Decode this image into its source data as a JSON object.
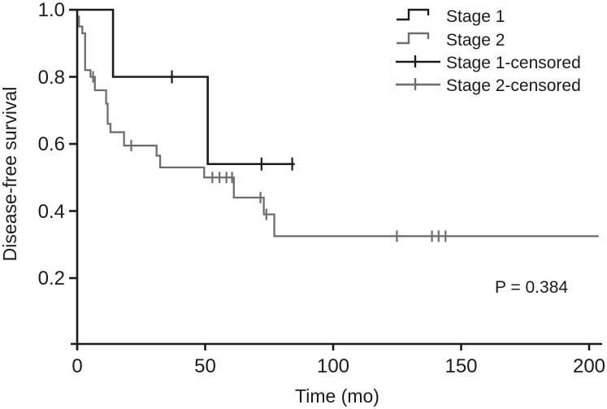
{
  "figure": {
    "background": "#ffffff"
  },
  "chart_data": {
    "type": "line",
    "subtype": "kaplan-meier-step",
    "title": "",
    "xlabel": "Time (mo)",
    "ylabel": "Disease-free survival",
    "xlim": [
      0,
      205
    ],
    "ylim": [
      0,
      1.0
    ],
    "xticks": [
      0,
      50,
      100,
      150,
      200
    ],
    "yticks": [
      1.0,
      0.8,
      0.6,
      0.4,
      0.2
    ],
    "xtick_labels": [
      "0",
      "50",
      "100",
      "150",
      "200"
    ],
    "ytick_labels": [
      "1.0",
      "0.8",
      "0.6",
      "0.4",
      "0.2"
    ],
    "grid": false,
    "axis_color": "#1c1c1c",
    "annotation": {
      "text": "P = 0.384",
      "x_time": 177,
      "y_survival": 0.17
    },
    "legend_position": "top-right",
    "legend": {
      "items": [
        {
          "label": "Stage 1",
          "color": "#1c1c1c",
          "symbol": "step"
        },
        {
          "label": "Stage 2",
          "color": "#6e6e6e",
          "symbol": "step"
        },
        {
          "label": "Stage 1-censored",
          "color": "#1c1c1c",
          "symbol": "censored"
        },
        {
          "label": "Stage 2-censored",
          "color": "#6e6e6e",
          "symbol": "censored"
        }
      ]
    },
    "series": [
      {
        "name": "Stage 1",
        "color": "#1c1c1c",
        "line_width": 2.6,
        "censor_tick_half": 8,
        "steps": [
          [
            0,
            1.0
          ],
          [
            14,
            0.8
          ],
          [
            51,
            0.54
          ]
        ],
        "end_t": 85,
        "censors": [
          [
            37,
            0.8
          ],
          [
            72,
            0.54
          ],
          [
            84,
            0.54
          ]
        ]
      },
      {
        "name": "Stage 2",
        "color": "#6e6e6e",
        "line_width": 2.3,
        "censor_tick_half": 7,
        "steps": [
          [
            0.5,
            0.98
          ],
          [
            0.7,
            0.95
          ],
          [
            2.0,
            0.93
          ],
          [
            3.1,
            0.82
          ],
          [
            5.2,
            0.8
          ],
          [
            6.9,
            0.76
          ],
          [
            11.3,
            0.72
          ],
          [
            11.9,
            0.66
          ],
          [
            13.0,
            0.635
          ],
          [
            18.3,
            0.595
          ],
          [
            31.0,
            0.565
          ],
          [
            32.4,
            0.53
          ],
          [
            49.6,
            0.5
          ],
          [
            61.2,
            0.44
          ],
          [
            72.9,
            0.39
          ],
          [
            77.0,
            0.325
          ]
        ],
        "end_t": 203.7,
        "censors": [
          [
            6.2,
            0.8
          ],
          [
            21.1,
            0.595
          ],
          [
            52.8,
            0.5
          ],
          [
            55.6,
            0.5
          ],
          [
            58.3,
            0.5
          ],
          [
            60.5,
            0.5
          ],
          [
            71.6,
            0.44
          ],
          [
            73.9,
            0.39
          ],
          [
            124.9,
            0.325
          ],
          [
            138.6,
            0.325
          ],
          [
            141.2,
            0.325
          ],
          [
            143.9,
            0.325
          ]
        ]
      }
    ]
  }
}
